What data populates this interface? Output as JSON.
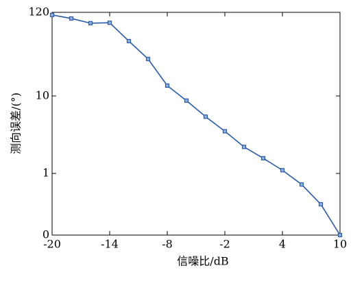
{
  "chart_data": {
    "type": "line",
    "x_label": "信噪比/dB",
    "y_label": "测向误差/(°)",
    "x": [
      -20,
      -18,
      -16,
      -14,
      -12,
      -10,
      -8,
      -6,
      -4,
      -2,
      0,
      2,
      4,
      6,
      8,
      10
    ],
    "series": [
      {
        "color": "#2b5aa8",
        "values": [
          111,
          100,
          87,
          88,
          51,
          30,
          13.6,
          8.7,
          5.4,
          3.5,
          2.2,
          1.57,
          1.1,
          0.72,
          0.4,
          0.16
        ]
      }
    ],
    "xlim": [
      -20,
      10
    ],
    "xticks": [
      -20,
      -14,
      -8,
      -2,
      4,
      10
    ],
    "ylim": [
      0.16,
      120
    ],
    "y_log": true,
    "yticks": [
      {
        "value": 0.16,
        "label": "0"
      },
      1,
      10,
      120
    ],
    "grid": false
  }
}
